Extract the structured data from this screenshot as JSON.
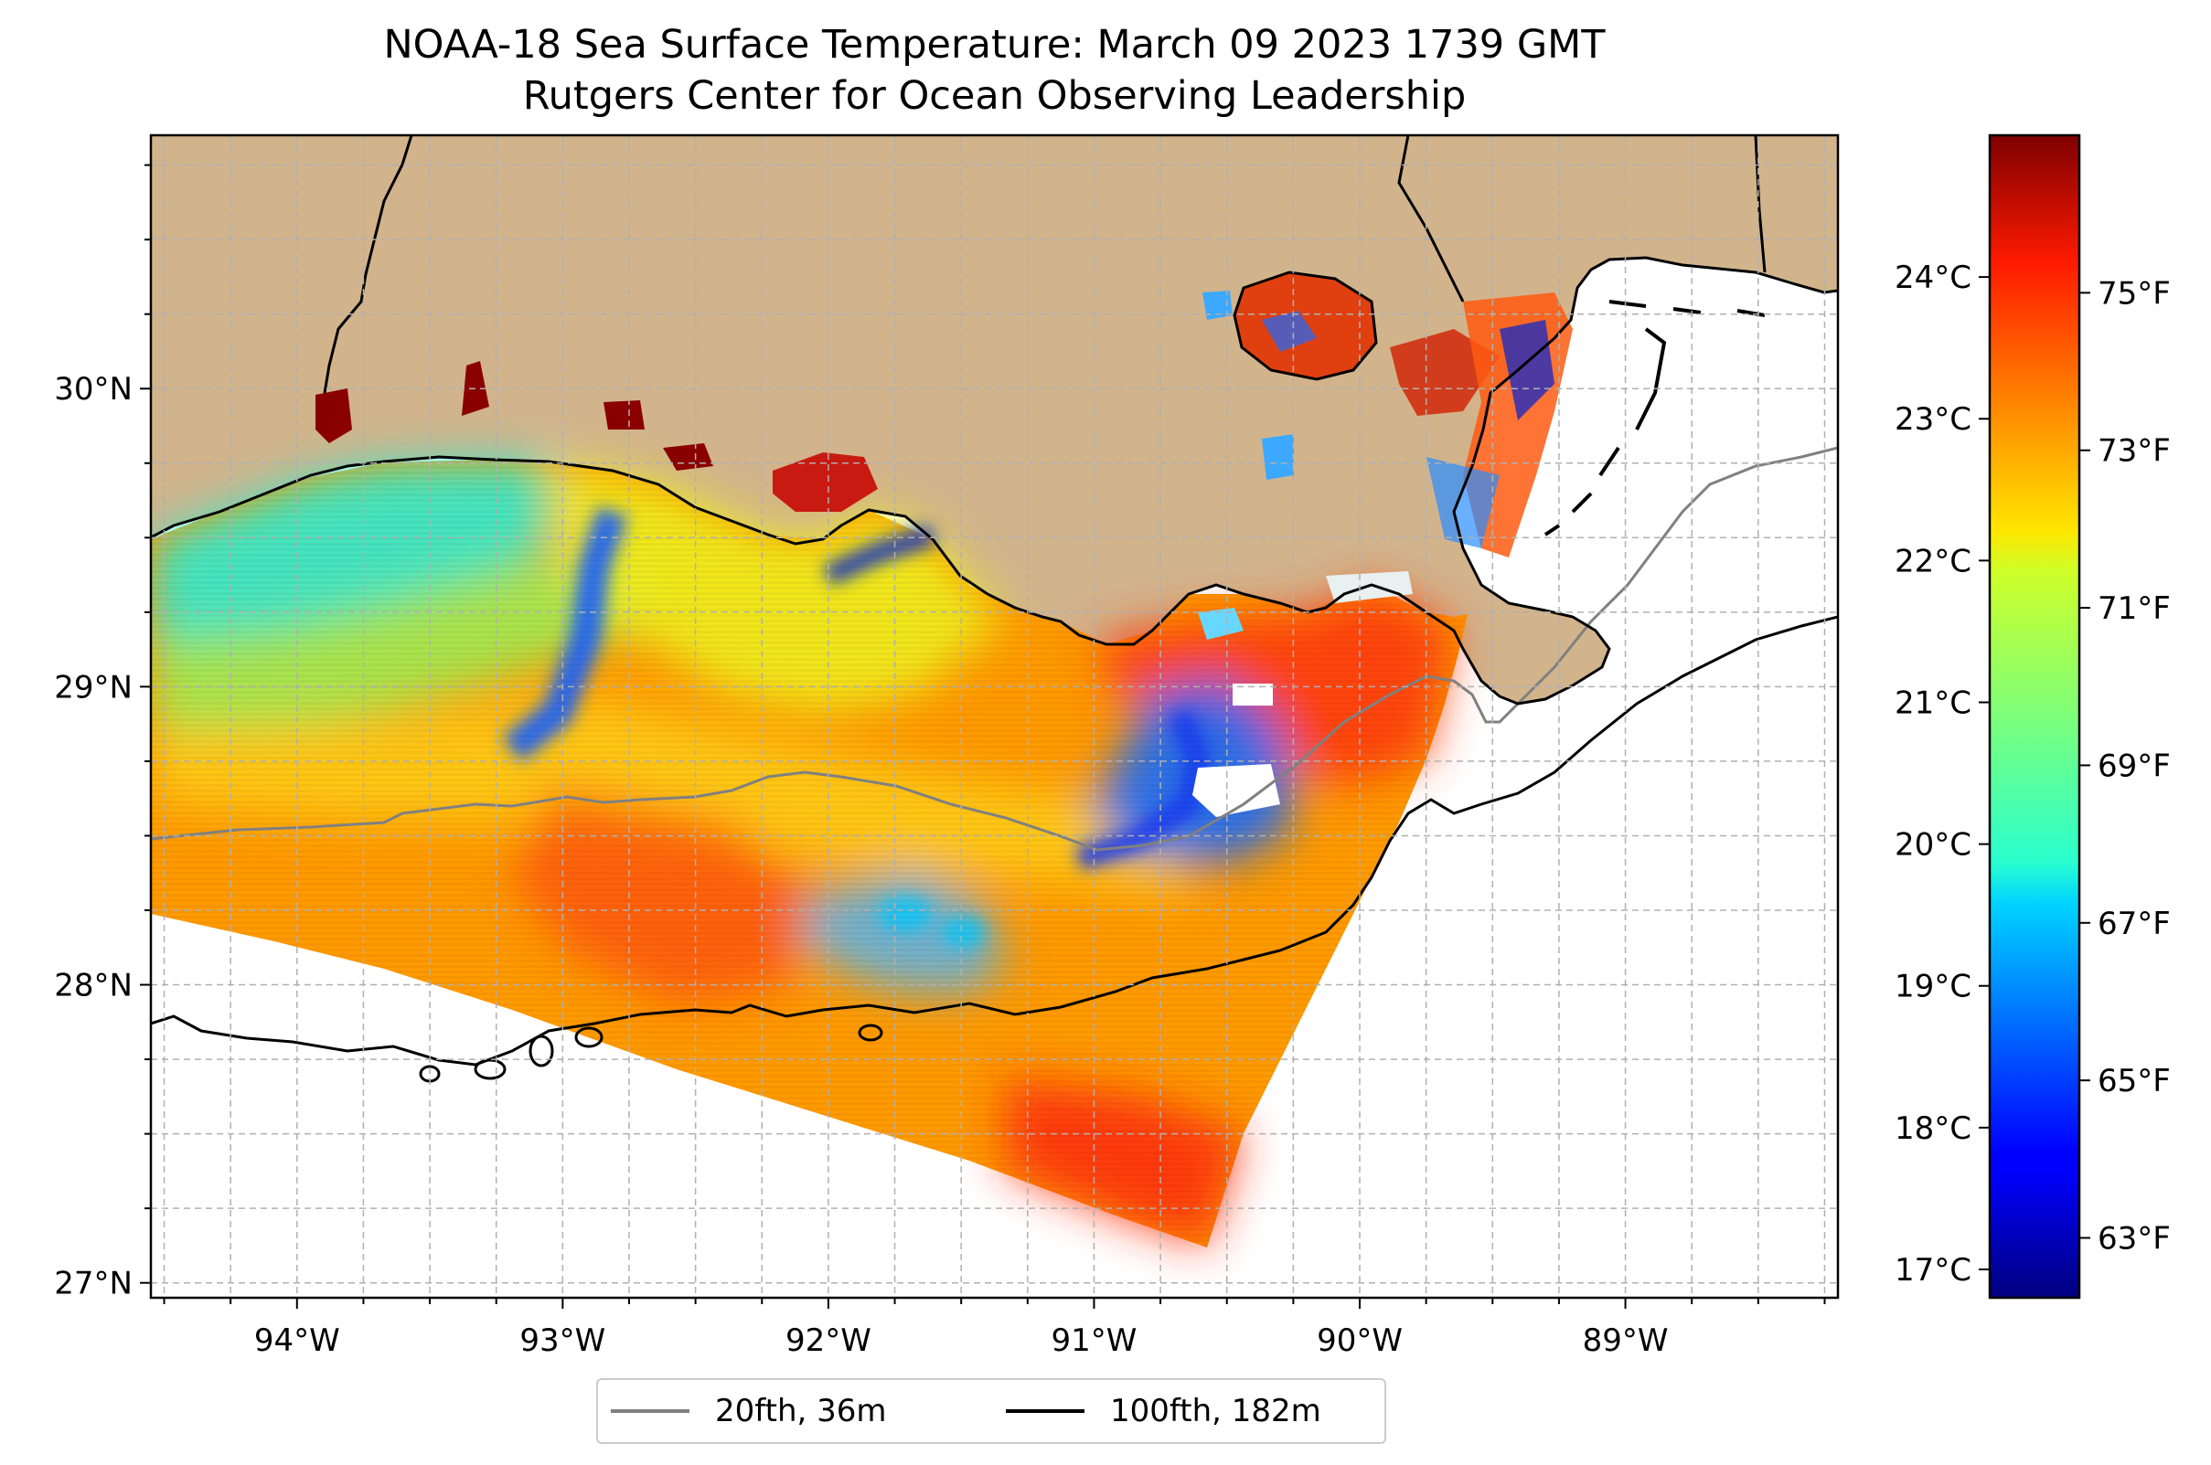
{
  "title_line1": "NOAA-18 Sea Surface Temperature: March 09 2023 1739 GMT",
  "title_line2": "Rutgers Center for Ocean Observing Leadership",
  "map": {
    "lon_range": [
      -94.55,
      -88.2
    ],
    "lat_range": [
      26.95,
      30.85
    ],
    "lon_ticks": [
      {
        "value": -94,
        "label": "94°W"
      },
      {
        "value": -93,
        "label": "93°W"
      },
      {
        "value": -92,
        "label": "92°W"
      },
      {
        "value": -91,
        "label": "91°W"
      },
      {
        "value": -90,
        "label": "90°W"
      },
      {
        "value": -89,
        "label": "89°W"
      }
    ],
    "lat_ticks": [
      {
        "value": 27,
        "label": "27°N"
      },
      {
        "value": 28,
        "label": "28°N"
      },
      {
        "value": 29,
        "label": "29°N"
      },
      {
        "value": 30,
        "label": "30°N"
      }
    ],
    "gridlines": "dashed",
    "land_color": "#d2b48c",
    "data_color_scheme": "jet"
  },
  "colorbar": {
    "range_c": [
      16.8,
      25.0
    ],
    "celsius_ticks": [
      {
        "value": 17,
        "label": "17°C"
      },
      {
        "value": 18,
        "label": "18°C"
      },
      {
        "value": 19,
        "label": "19°C"
      },
      {
        "value": 20,
        "label": "20°C"
      },
      {
        "value": 21,
        "label": "21°C"
      },
      {
        "value": 22,
        "label": "22°C"
      },
      {
        "value": 23,
        "label": "23°C"
      },
      {
        "value": 24,
        "label": "24°C"
      }
    ],
    "fahrenheit_ticks": [
      {
        "value": 63,
        "label": "63°F"
      },
      {
        "value": 65,
        "label": "65°F"
      },
      {
        "value": 67,
        "label": "67°F"
      },
      {
        "value": 69,
        "label": "69°F"
      },
      {
        "value": 71,
        "label": "71°F"
      },
      {
        "value": 73,
        "label": "73°F"
      },
      {
        "value": 75,
        "label": "75°F"
      }
    ]
  },
  "legend": {
    "placement": "bottom-center",
    "items": [
      {
        "label": "20fth, 36m",
        "color": "#808080"
      },
      {
        "label": "100fth, 182m",
        "color": "#000000"
      }
    ]
  }
}
